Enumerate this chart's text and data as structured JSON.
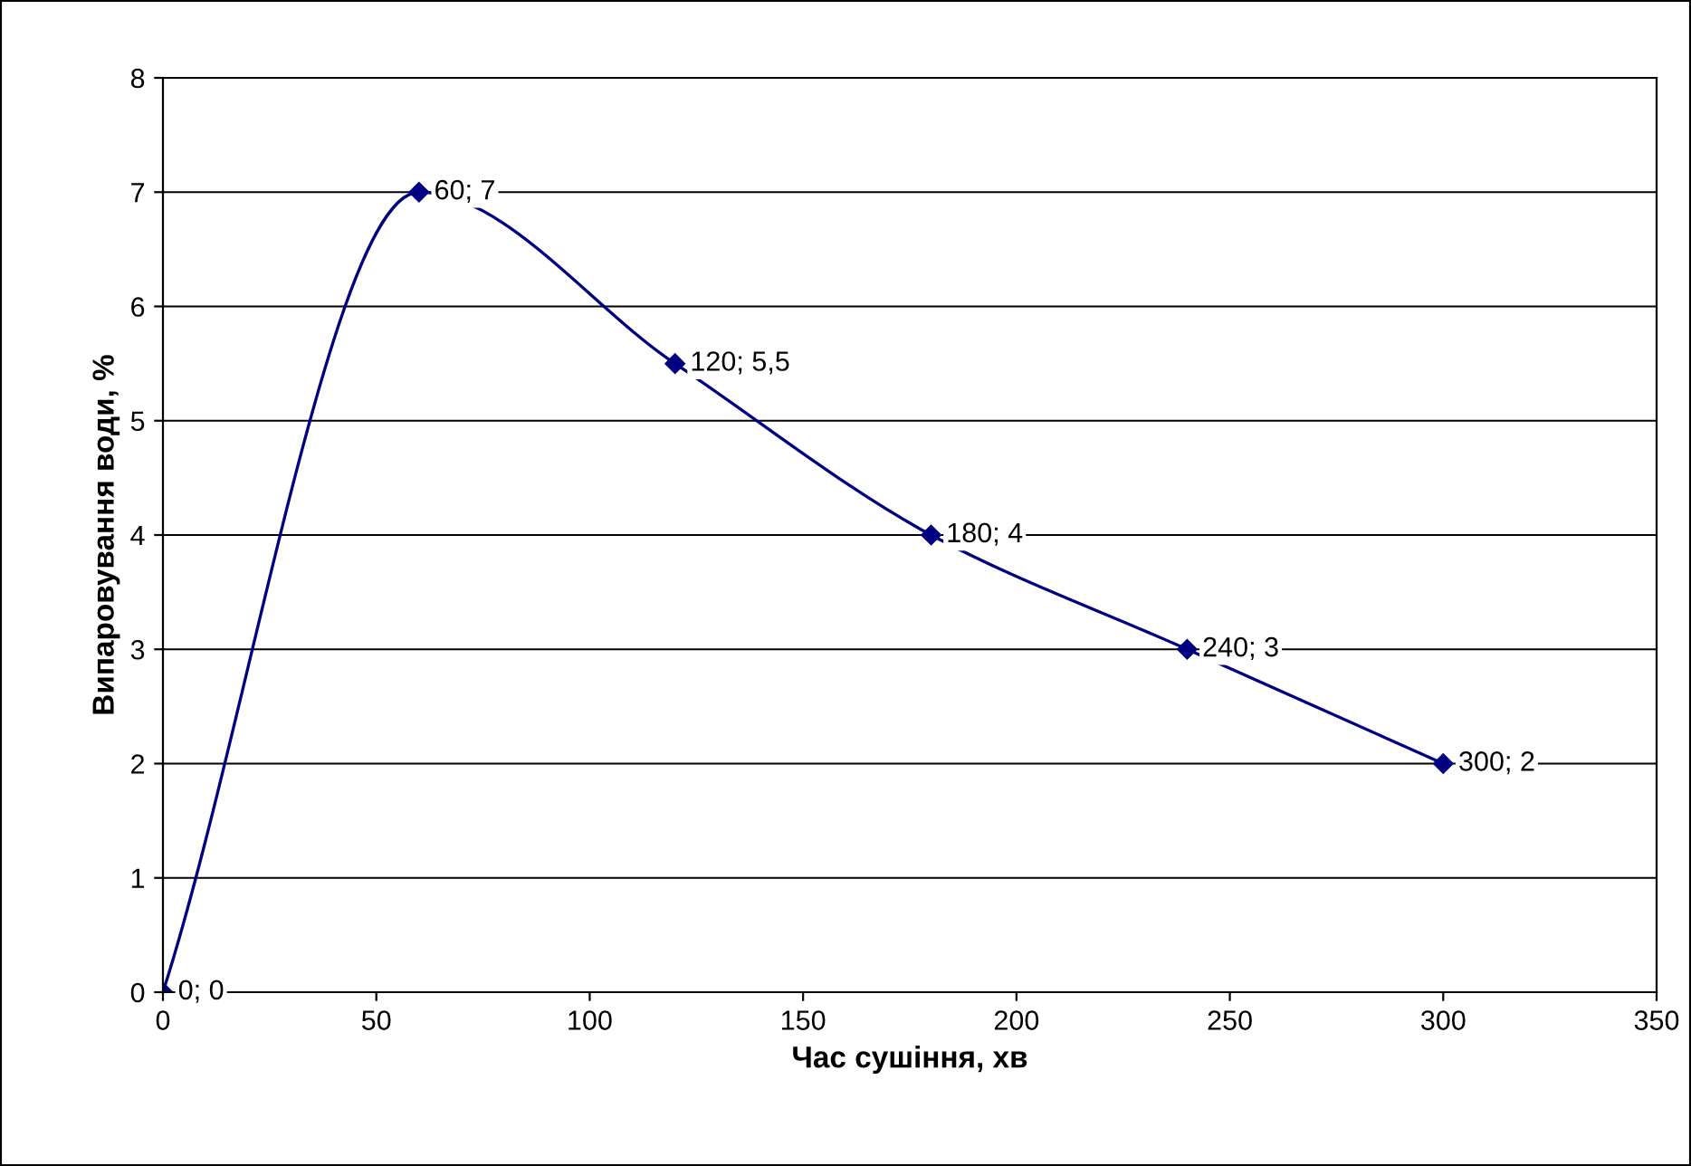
{
  "chart_data": {
    "type": "line",
    "xlabel": "Час сушіння, хв",
    "ylabel": "Випаровування води, %",
    "x": [
      0,
      60,
      120,
      180,
      240,
      300
    ],
    "series": [
      {
        "color": "#000080",
        "values": [
          0,
          7,
          5.5,
          4,
          3,
          2
        ],
        "value_labels": [
          "0; 0",
          "60; 7",
          "120; 5,5",
          "180; 4",
          "240; 3",
          "300; 2"
        ]
      }
    ],
    "xlim": [
      0,
      350
    ],
    "xticks": [
      0,
      50,
      100,
      150,
      200,
      250,
      300,
      350
    ],
    "ylim": [
      0,
      8
    ],
    "yticks": [
      0,
      1,
      2,
      3,
      4,
      5,
      6,
      7,
      8
    ],
    "grid": "y",
    "marker": "diamond",
    "line_style": "solid",
    "legend": false
  }
}
